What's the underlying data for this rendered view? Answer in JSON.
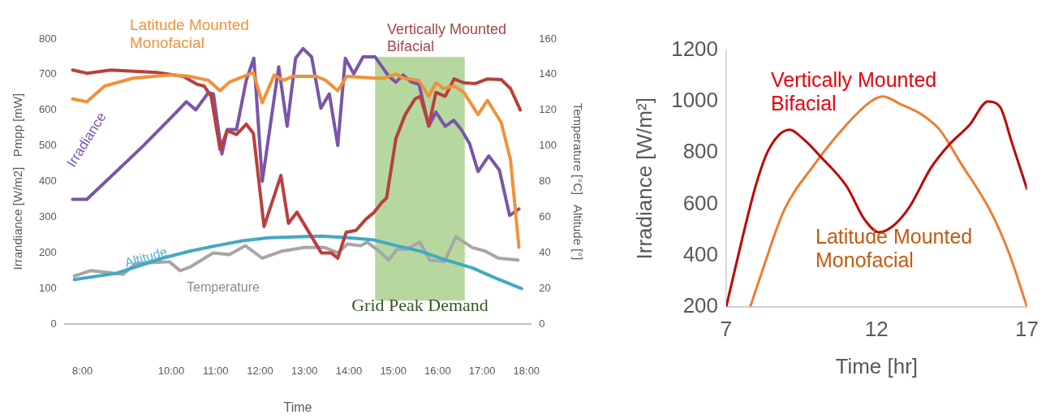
{
  "chart_data": [
    {
      "type": "line",
      "xlabel": "Time",
      "ylabel": "Irrandiance [W/m2]   Pmpp [mW]",
      "y2label": "Temperature [°C]   Altitude [°]",
      "xlim": [
        7.6,
        18.1
      ],
      "xticks": [
        {
          "value": 8,
          "label": "8:00"
        },
        {
          "value": 10,
          "label": "10:00"
        },
        {
          "value": 11,
          "label": "11:00"
        },
        {
          "value": 12,
          "label": "12:00"
        },
        {
          "value": 13,
          "label": "13:00"
        },
        {
          "value": 14,
          "label": "14:00"
        },
        {
          "value": 15,
          "label": "15:00"
        },
        {
          "value": 16,
          "label": "16:00"
        },
        {
          "value": 17,
          "label": "17:00"
        },
        {
          "value": 18,
          "label": "18:00"
        }
      ],
      "ylim": [
        0,
        800
      ],
      "yticks": [
        0,
        100,
        200,
        300,
        400,
        500,
        600,
        700,
        800
      ],
      "y2lim": [
        0,
        160
      ],
      "y2ticks": [
        0,
        20,
        40,
        60,
        80,
        100,
        120,
        140,
        160
      ],
      "bands": [
        {
          "axis": "x",
          "from": 14.59,
          "to": 16.61,
          "label": "Grid Peak Demand",
          "color": "#a9d18e"
        }
      ],
      "series": [
        {
          "name": "Latitude Mounted Monofacial",
          "color": "#f0923a",
          "x": [
            7.78,
            8.1,
            8.5,
            9.14,
            10,
            10.42,
            10.84,
            11.1,
            11.31,
            11.63,
            11.85,
            12.05,
            12.32,
            12.53,
            12.73,
            13.27,
            13.48,
            13.75,
            13.95,
            14.59,
            14.79,
            15.06,
            15.22,
            15.58,
            15.8,
            15.96,
            16.14,
            16.37,
            16.59,
            16.91,
            17.12,
            17.43,
            17.64,
            17.83
          ],
          "values": [
            632,
            624,
            668,
            690,
            699,
            695,
            684,
            655,
            679,
            695,
            706,
            621,
            699,
            684,
            695,
            695,
            684,
            655,
            695,
            690,
            690,
            702,
            690,
            684,
            639,
            677,
            661,
            668,
            650,
            588,
            628,
            566,
            461,
            216
          ]
        },
        {
          "name": "Vertically Mounted Bifacial",
          "color": "#b8403c",
          "x": [
            7.78,
            8.1,
            8.64,
            9.68,
            10.27,
            10.58,
            10.74,
            10.9,
            11.1,
            11.26,
            11.47,
            11.69,
            11.85,
            12.09,
            12.47,
            12.64,
            12.83,
            13.38,
            13.6,
            13.75,
            13.94,
            14.16,
            14.38,
            14.57,
            14.74,
            14.85,
            15.06,
            15.27,
            15.49,
            15.61,
            15.8,
            15.96,
            16.17,
            16.37,
            16.59,
            16.85,
            17.12,
            17.43,
            17.64,
            17.86
          ],
          "values": [
            713,
            704,
            713,
            706,
            695,
            673,
            668,
            639,
            490,
            543,
            532,
            561,
            535,
            274,
            417,
            283,
            314,
            200,
            200,
            185,
            258,
            263,
            294,
            314,
            341,
            354,
            521,
            588,
            632,
            639,
            557,
            650,
            639,
            688,
            677,
            675,
            688,
            686,
            661,
            601
          ]
        },
        {
          "name": "Irradiance",
          "color": "#7a55a8",
          "x": [
            7.78,
            8.1,
            9.36,
            10,
            10.34,
            10.55,
            10.84,
            10.95,
            11.14,
            11.26,
            11.47,
            11.69,
            11.86,
            12.05,
            12.42,
            12.61,
            12.8,
            12.97,
            13.16,
            13.37,
            13.56,
            13.75,
            13.92,
            14.11,
            14.32,
            14.59,
            14.9,
            15.06,
            15.22,
            15.41,
            15.58,
            15.8,
            15.96,
            16.17,
            16.36,
            16.53,
            16.72,
            16.91,
            17.15,
            17.39,
            17.62,
            17.83
          ],
          "values": [
            350,
            350,
            499,
            580,
            624,
            601,
            650,
            646,
            477,
            546,
            546,
            684,
            746,
            401,
            722,
            555,
            746,
            773,
            750,
            606,
            646,
            501,
            746,
            702,
            750,
            750,
            695,
            679,
            699,
            679,
            673,
            555,
            595,
            555,
            572,
            546,
            506,
            428,
            472,
            432,
            305,
            323
          ]
        },
        {
          "name": "Altitude",
          "color": "#42a9c4",
          "axis": "y2",
          "x": [
            7.82,
            8.76,
            9.8,
            10.42,
            11.01,
            11.61,
            12.2,
            12.78,
            13.38,
            13.97,
            14.57,
            15.08,
            15.6,
            16.18,
            16.78,
            17.29,
            17.89
          ],
          "values": [
            25,
            28.5,
            37,
            41,
            44,
            46.8,
            48.5,
            49,
            49.4,
            48.5,
            47.2,
            44,
            41,
            36,
            31.6,
            26,
            20
          ]
        },
        {
          "name": "Temperature",
          "color": "#a6a6a6",
          "axis": "y2",
          "x": [
            7.82,
            8.18,
            8.92,
            9.2,
            9.96,
            10.2,
            10.42,
            10.95,
            11.31,
            11.67,
            12.05,
            12.5,
            13.0,
            13.46,
            13.75,
            13.97,
            14.27,
            14.41,
            14.63,
            14.9,
            15.08,
            15.3,
            15.6,
            15.82,
            16.15,
            16.41,
            16.78,
            17.07,
            17.37,
            17.81
          ],
          "values": [
            27,
            30,
            28,
            34,
            35,
            30,
            32,
            40,
            39,
            44,
            37,
            41,
            43,
            43,
            40,
            45,
            44,
            46,
            42,
            36,
            42,
            42,
            46,
            36,
            35,
            49,
            43,
            41,
            37,
            36
          ]
        }
      ]
    },
    {
      "type": "line",
      "xlabel": "Time [hr]",
      "ylabel": "Irradiance [W/m²]",
      "xlim": [
        7,
        17
      ],
      "xticks": [
        7,
        12,
        17
      ],
      "ylim": [
        200,
        1200
      ],
      "yticks": [
        200,
        400,
        600,
        800,
        1000,
        1200
      ],
      "series": [
        {
          "name": "Vertically Mounted Bifacial",
          "color": "#c00000",
          "x": [
            7.0,
            7.5,
            8.0,
            8.4,
            9.1,
            9.6,
            10.1,
            11.0,
            11.6,
            12.1,
            12.6,
            13.1,
            13.8,
            14.4,
            15.1,
            15.7,
            16.1,
            16.5,
            17.0
          ],
          "values": [
            200,
            450,
            680,
            810,
            890,
            850,
            790,
            670,
            540,
            490,
            520,
            590,
            740,
            830,
            910,
            1000,
            980,
            840,
            660
          ]
        },
        {
          "name": "Latitude Mounted Monofacial",
          "color": "#ed7d31",
          "x": [
            7.8,
            8.2,
            8.9,
            9.9,
            11.0,
            11.8,
            12.2,
            12.8,
            13.5,
            14.1,
            14.8,
            15.8,
            16.4,
            17.0
          ],
          "values": [
            200,
            340,
            570,
            750,
            910,
            1000,
            1020,
            990,
            950,
            890,
            760,
            570,
            410,
            200
          ]
        }
      ]
    }
  ]
}
